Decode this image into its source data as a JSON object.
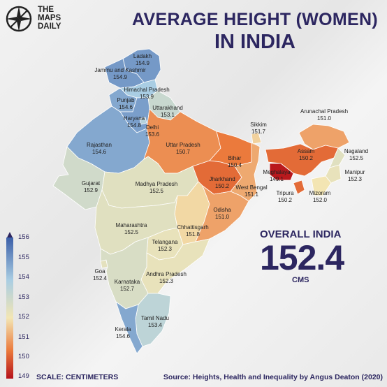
{
  "brand": {
    "line1": "THE",
    "line2": "MAPS",
    "line3": "DAILY"
  },
  "title": {
    "line1": "AVERAGE HEIGHT (WOMEN)",
    "line2": "IN INDIA"
  },
  "overall": {
    "label": "OVERALL INDIA",
    "value": "152.4",
    "unit": "CMS"
  },
  "scale_note": "SCALE: CENTIMETERS",
  "source": "Source: Heights, Health and Inequality by Angus Deaton (2020)",
  "legend": {
    "ticks": [
      "156",
      "155",
      "154",
      "153",
      "152",
      "151",
      "150",
      "149"
    ],
    "min": 149,
    "max": 156,
    "colors": [
      "#3b5fa8",
      "#a9cde3",
      "#f3e6b4",
      "#eb7a3c",
      "#b5121b"
    ]
  },
  "states": [
    {
      "name": "Ladakh",
      "value": "154.9"
    },
    {
      "name": "Jammu and Kashmir",
      "value": "154.9"
    },
    {
      "name": "Himachal Pradesh",
      "value": "153.9"
    },
    {
      "name": "Punjab",
      "value": "154.6"
    },
    {
      "name": "Uttarakhand",
      "value": "153.1"
    },
    {
      "name": "Haryana",
      "value": "154.8"
    },
    {
      "name": "Delhi",
      "value": "153.6"
    },
    {
      "name": "Rajasthan",
      "value": "154.6"
    },
    {
      "name": "Uttar Pradesh",
      "value": "150.7"
    },
    {
      "name": "Sikkim",
      "value": "151.7"
    },
    {
      "name": "Arunachal Pradesh",
      "value": "151.0"
    },
    {
      "name": "Nagaland",
      "value": "152.5"
    },
    {
      "name": "Assam",
      "value": "150.2"
    },
    {
      "name": "Meghalaya",
      "value": "149.1"
    },
    {
      "name": "Manipur",
      "value": "152.3"
    },
    {
      "name": "Bihar",
      "value": "150.4"
    },
    {
      "name": "Gujarat",
      "value": "152.9"
    },
    {
      "name": "Madhya Pradesh",
      "value": "152.5"
    },
    {
      "name": "Jharkhand",
      "value": "150.2"
    },
    {
      "name": "West Bengal",
      "value": "151.1"
    },
    {
      "name": "Tripura",
      "value": "150.2"
    },
    {
      "name": "Mizoram",
      "value": "152.0"
    },
    {
      "name": "Chhattisgarh",
      "value": "151.8"
    },
    {
      "name": "Odisha",
      "value": "151.0"
    },
    {
      "name": "Maharashtra",
      "value": "152.5"
    },
    {
      "name": "Telangana",
      "value": "152.3"
    },
    {
      "name": "Goa",
      "value": "152.4"
    },
    {
      "name": "Andhra Pradesh",
      "value": "152.3"
    },
    {
      "name": "Karnataka",
      "value": "152.7"
    },
    {
      "name": "Tamil Nadu",
      "value": "153.4"
    },
    {
      "name": "Kerala",
      "value": "154.6"
    }
  ]
}
